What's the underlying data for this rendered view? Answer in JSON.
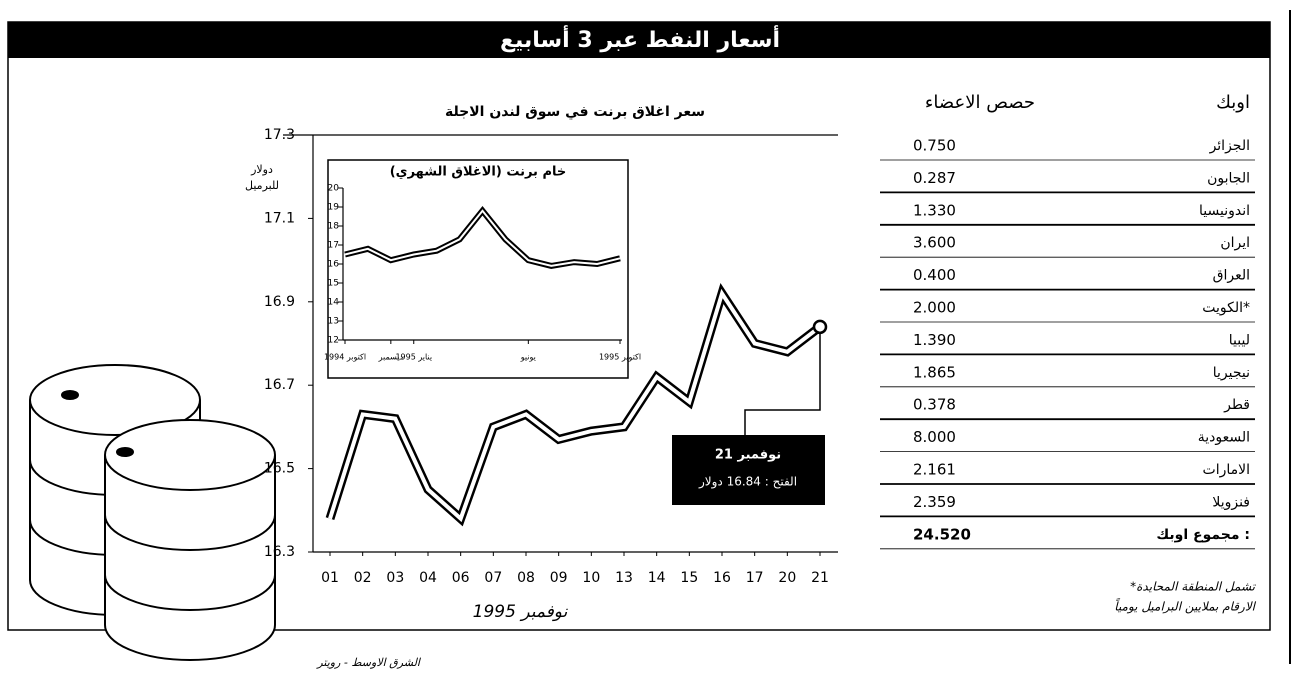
{
  "title": "أسعار النفط عبر 3 أسابيع",
  "chart_data": [
    {
      "type": "line",
      "title": "سعر اغلاق برنت في سوق لندن الاجلة",
      "ylabel": [
        "دولار",
        "للبرميل"
      ],
      "xlabel": "نوفمبر 1995",
      "categories": [
        "01",
        "02",
        "03",
        "04",
        "06",
        "07",
        "08",
        "09",
        "10",
        "13",
        "14",
        "15",
        "16",
        "17",
        "20",
        "21"
      ],
      "values": [
        16.38,
        16.63,
        16.62,
        16.45,
        16.38,
        16.6,
        16.63,
        16.57,
        16.59,
        16.6,
        16.72,
        16.66,
        16.92,
        16.8,
        16.78,
        16.84
      ],
      "color": "#000000",
      "ylim": [
        16.3,
        17.3
      ],
      "yticks": [
        16.3,
        16.5,
        16.7,
        16.9,
        17.1,
        17.3
      ],
      "annotation": {
        "title": "21 نوفمبر",
        "text": "الفتح : 16.84 دولار"
      }
    },
    {
      "type": "line",
      "title": "خام برنت (الاغلاق الشهري)",
      "categories": [
        "اكتوبر 1994",
        null,
        "ديسمبر",
        "يناير 1995",
        null,
        null,
        null,
        null,
        "يونيو",
        null,
        null,
        null,
        "اكتوبر 1995"
      ],
      "values": [
        16.5,
        16.8,
        16.2,
        16.5,
        16.7,
        17.3,
        18.8,
        17.3,
        16.2,
        15.9,
        16.1,
        16.0,
        16.3
      ],
      "color": "#000000",
      "ylim": [
        12,
        20
      ],
      "yticks": [
        12,
        13,
        14,
        15,
        16,
        17,
        18,
        19,
        20
      ]
    }
  ],
  "table": {
    "header": [
      "اوبك",
      "حصص الاعضاء"
    ],
    "rows": [
      [
        "الجزائر",
        "0.750"
      ],
      [
        "الجابون",
        "0.287"
      ],
      [
        "اندونيسيا",
        "1.330"
      ],
      [
        "ايران",
        "3.600"
      ],
      [
        "العراق",
        "0.400"
      ],
      [
        "الكويت*",
        "2.000"
      ],
      [
        "ليبيا",
        "1.390"
      ],
      [
        "نيجيريا",
        "1.865"
      ],
      [
        "قطر",
        "0.378"
      ],
      [
        "السعودية",
        "8.000"
      ],
      [
        "الامارات",
        "2.161"
      ],
      [
        "فنزويلا",
        "2.359"
      ],
      [
        "مجموع اوبك :",
        "24.520"
      ]
    ],
    "notes": [
      "*تشمل المنطقة المحايدة",
      "الارقام بملايين البراميل يومياً"
    ]
  },
  "source": "الشرق الاوسط - رويتر"
}
